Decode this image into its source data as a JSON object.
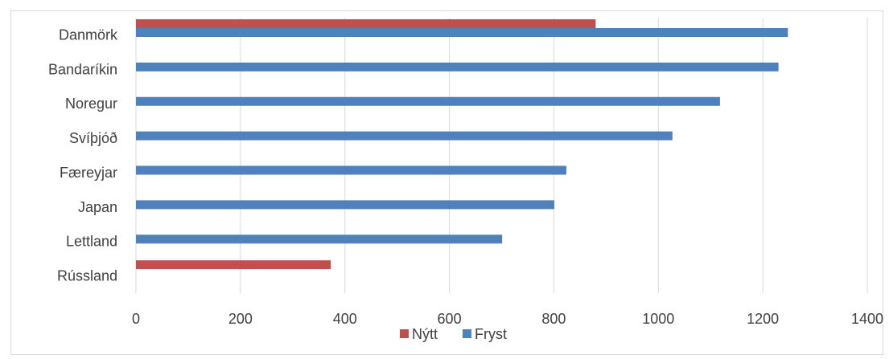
{
  "chart_data": {
    "type": "bar",
    "orientation": "horizontal",
    "categories": [
      "Danmörk",
      "Bandaríkin",
      "Noregur",
      "Svíþjóð",
      "Færeyjar",
      "Japan",
      "Lettland",
      "Rússland"
    ],
    "series": [
      {
        "name": "Nýtt",
        "color": "#c0504d",
        "values": [
          880,
          0,
          0,
          0,
          0,
          0,
          0,
          373
        ]
      },
      {
        "name": "Fryst",
        "color": "#4f81bd",
        "values": [
          1248,
          1230,
          1118,
          1027,
          824,
          801,
          701,
          0
        ]
      }
    ],
    "x_ticks": [
      0,
      200,
      400,
      600,
      800,
      1000,
      1200,
      1400
    ],
    "xlim": [
      0,
      1400
    ],
    "grid": "vertical",
    "legend": "bottom",
    "title": "",
    "xlabel": "",
    "ylabel": ""
  }
}
